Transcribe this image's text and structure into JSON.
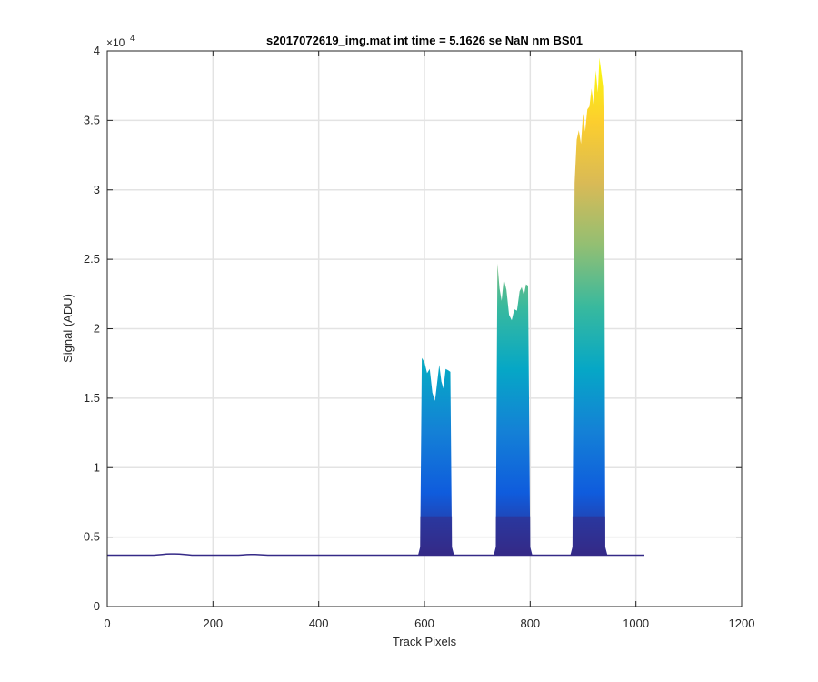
{
  "chart_data": {
    "type": "area",
    "title": "s2017072619_img.mat int time = 5.1626 se  NaN nm BS01",
    "xlabel": "Track Pixels",
    "ylabel": "Signal (ADU)",
    "y_exponent_label": "×10",
    "y_exponent_power": "4",
    "xlim": [
      0,
      1200
    ],
    "ylim": [
      0,
      40000
    ],
    "x_ticks": [
      0,
      200,
      400,
      600,
      800,
      1000,
      1200
    ],
    "y_ticks": [
      0,
      5000,
      10000,
      15000,
      20000,
      25000,
      30000,
      35000,
      40000
    ],
    "x_tick_labels": [
      "0",
      "200",
      "400",
      "600",
      "800",
      "1000",
      "1200"
    ],
    "y_tick_labels": [
      "0",
      "0.5",
      "1",
      "1.5",
      "2",
      "2.5",
      "3",
      "3.5",
      "4"
    ],
    "grid": true,
    "colormap": [
      "#352a87",
      "#0f5cdd",
      "#1481d6",
      "#06a7c6",
      "#38b99e",
      "#92bf73",
      "#d9ba56",
      "#fcce2e",
      "#f9fb0e"
    ],
    "baseline": 3700,
    "x_max": 1023,
    "peaks": [
      {
        "x_start": 592,
        "x_end": 652,
        "envelope": [
          [
            595,
            17900
          ],
          [
            600,
            17600
          ],
          [
            605,
            16800
          ],
          [
            610,
            17100
          ],
          [
            615,
            15400
          ],
          [
            620,
            14800
          ],
          [
            625,
            16400
          ],
          [
            628,
            17400
          ],
          [
            632,
            16200
          ],
          [
            636,
            15700
          ],
          [
            640,
            17100
          ],
          [
            645,
            17000
          ],
          [
            649,
            16900
          ]
        ]
      },
      {
        "x_start": 735,
        "x_end": 800,
        "envelope": [
          [
            738,
            24700
          ],
          [
            742,
            22900
          ],
          [
            746,
            22000
          ],
          [
            750,
            23600
          ],
          [
            755,
            22800
          ],
          [
            760,
            21000
          ],
          [
            765,
            20600
          ],
          [
            770,
            21400
          ],
          [
            775,
            21300
          ],
          [
            780,
            22700
          ],
          [
            784,
            23000
          ],
          [
            788,
            22400
          ],
          [
            792,
            23200
          ],
          [
            796,
            23100
          ]
        ]
      },
      {
        "x_start": 880,
        "x_end": 942,
        "envelope": [
          [
            884,
            30500
          ],
          [
            888,
            33600
          ],
          [
            892,
            34300
          ],
          [
            896,
            33300
          ],
          [
            900,
            35500
          ],
          [
            904,
            34200
          ],
          [
            908,
            35800
          ],
          [
            912,
            36000
          ],
          [
            916,
            37300
          ],
          [
            920,
            36100
          ],
          [
            924,
            38600
          ],
          [
            928,
            37000
          ],
          [
            931,
            39500
          ],
          [
            935,
            38300
          ],
          [
            938,
            37400
          ],
          [
            940,
            33000
          ]
        ]
      }
    ]
  }
}
